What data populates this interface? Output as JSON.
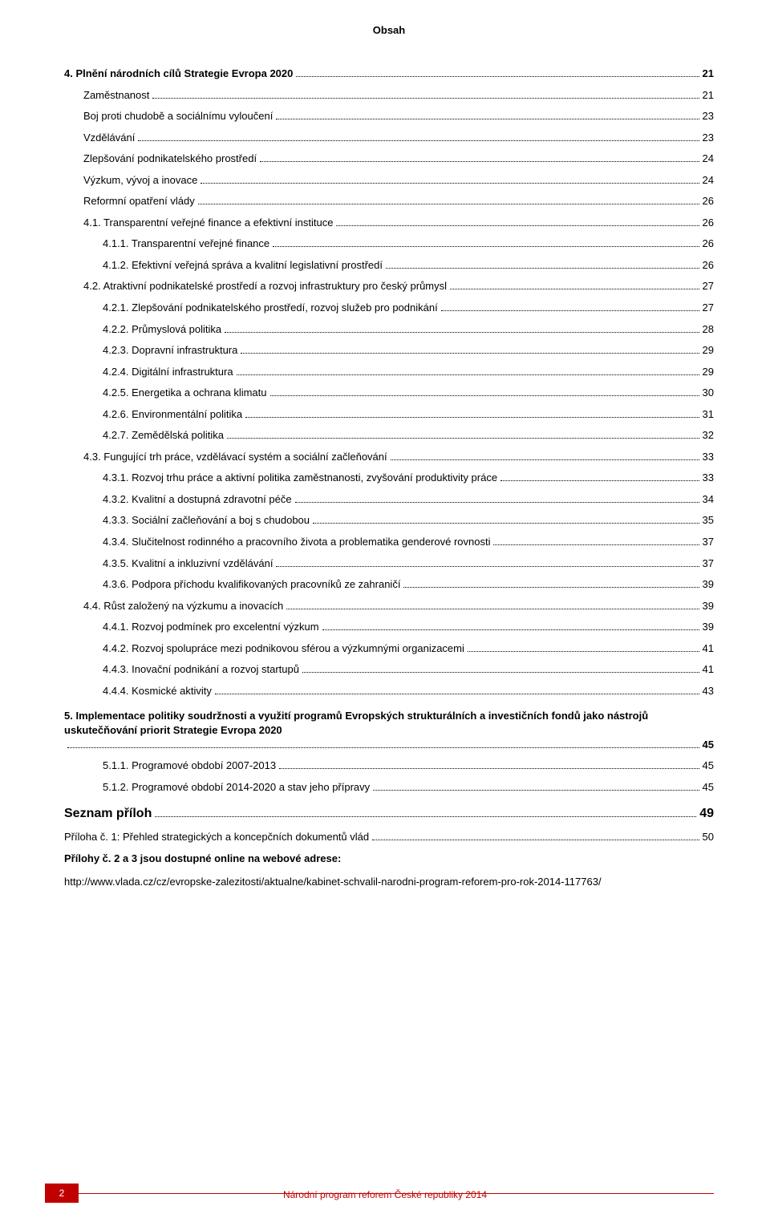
{
  "header": {
    "title": "Obsah"
  },
  "footer": {
    "page_number": "2",
    "caption": "Národní program reforem České republiky 2014",
    "accent_color": "#c00000"
  },
  "toc": [
    {
      "label": "4.  Plnění národních cílů Strategie Evropa 2020",
      "page": "21",
      "level": 0,
      "bold": true,
      "gap": false
    },
    {
      "label": "Zaměstnanost",
      "page": "21",
      "level": 1,
      "bold": false,
      "gap": false
    },
    {
      "label": "Boj proti chudobě a sociálnímu vyloučení",
      "page": "23",
      "level": 1,
      "bold": false,
      "gap": false
    },
    {
      "label": "Vzdělávání",
      "page": "23",
      "level": 1,
      "bold": false,
      "gap": false
    },
    {
      "label": "Zlepšování podnikatelského prostředí",
      "page": "24",
      "level": 1,
      "bold": false,
      "gap": false
    },
    {
      "label": "Výzkum, vývoj a inovace",
      "page": "24",
      "level": 1,
      "bold": false,
      "gap": false
    },
    {
      "label": "Reformní opatření vlády",
      "page": "26",
      "level": 1,
      "bold": false,
      "gap": false
    },
    {
      "label": "4.1.  Transparentní veřejné finance a efektivní instituce",
      "page": "26",
      "level": 2,
      "bold": false,
      "gap": false
    },
    {
      "label": "4.1.1.  Transparentní veřejné finance",
      "page": "26",
      "level": 3,
      "bold": false,
      "gap": false
    },
    {
      "label": "4.1.2.  Efektivní veřejná správa a kvalitní legislativní prostředí",
      "page": "26",
      "level": 3,
      "bold": false,
      "gap": false
    },
    {
      "label": "4.2.  Atraktivní podnikatelské prostředí a rozvoj infrastruktury pro český průmysl",
      "page": "27",
      "level": 2,
      "bold": false,
      "gap": false
    },
    {
      "label": "4.2.1.  Zlepšování podnikatelského prostředí, rozvoj služeb pro podnikání",
      "page": "27",
      "level": 3,
      "bold": false,
      "gap": false
    },
    {
      "label": "4.2.2.  Průmyslová politika",
      "page": "28",
      "level": 3,
      "bold": false,
      "gap": false
    },
    {
      "label": "4.2.3.  Dopravní infrastruktura",
      "page": "29",
      "level": 3,
      "bold": false,
      "gap": false
    },
    {
      "label": "4.2.4.  Digitální infrastruktura",
      "page": "29",
      "level": 3,
      "bold": false,
      "gap": false
    },
    {
      "label": "4.2.5.  Energetika a ochrana klimatu",
      "page": "30",
      "level": 3,
      "bold": false,
      "gap": false
    },
    {
      "label": "4.2.6.  Environmentální politika",
      "page": "31",
      "level": 3,
      "bold": false,
      "gap": false
    },
    {
      "label": "4.2.7.  Zemědělská politika",
      "page": "32",
      "level": 3,
      "bold": false,
      "gap": false
    },
    {
      "label": "4.3.  Fungující trh práce, vzdělávací systém a sociální začleňování",
      "page": "33",
      "level": 2,
      "bold": false,
      "gap": false
    },
    {
      "label": "4.3.1.  Rozvoj trhu práce a aktivní politika zaměstnanosti, zvyšování produktivity práce",
      "page": "33",
      "level": 3,
      "bold": false,
      "gap": false
    },
    {
      "label": "4.3.2.  Kvalitní a dostupná zdravotní péče",
      "page": "34",
      "level": 3,
      "bold": false,
      "gap": false
    },
    {
      "label": "4.3.3.  Sociální začleňování a boj s chudobou",
      "page": "35",
      "level": 3,
      "bold": false,
      "gap": false
    },
    {
      "label": "4.3.4.  Slučitelnost rodinného a pracovního života a problematika genderové rovnosti",
      "page": "37",
      "level": 3,
      "bold": false,
      "gap": false
    },
    {
      "label": "4.3.5.  Kvalitní a inkluzivní vzdělávání",
      "page": "37",
      "level": 3,
      "bold": false,
      "gap": false
    },
    {
      "label": "4.3.6.  Podpora příchodu kvalifikovaných pracovníků ze zahraničí",
      "page": "39",
      "level": 3,
      "bold": false,
      "gap": false
    },
    {
      "label": "4.4.  Růst založený na výzkumu a inovacích",
      "page": "39",
      "level": 2,
      "bold": false,
      "gap": false
    },
    {
      "label": "4.4.1.  Rozvoj podmínek pro excelentní výzkum",
      "page": "39",
      "level": 3,
      "bold": false,
      "gap": false
    },
    {
      "label": "4.4.2.  Rozvoj spolupráce mezi podnikovou sférou a výzkumnými organizacemi",
      "page": "41",
      "level": 3,
      "bold": false,
      "gap": false
    },
    {
      "label": "4.4.3.  Inovační podnikání a rozvoj startupů",
      "page": "41",
      "level": 3,
      "bold": false,
      "gap": false
    },
    {
      "label": "4.4.4.  Kosmické aktivity",
      "page": "43",
      "level": 3,
      "bold": false,
      "gap": false
    },
    {
      "label": "5.  Implementace politiky soudržnosti a využití programů Evropských strukturálních a investičních fondů jako nástrojů uskutečňování priorit Strategie Evropa 2020",
      "page": "45",
      "level": 0,
      "bold": true,
      "gap": true
    },
    {
      "label": "5.1.1.  Programové období 2007-2013",
      "page": "45",
      "level": 3,
      "bold": false,
      "gap": false
    },
    {
      "label": "5.1.2.  Programové období 2014-2020 a stav jeho přípravy",
      "page": "45",
      "level": 3,
      "bold": false,
      "gap": false
    },
    {
      "label": "Seznam příloh",
      "page": "49",
      "level": 0,
      "bold": true,
      "gap": true,
      "big": true
    },
    {
      "label": "Příloha č. 1: Přehled strategických a koncepčních dokumentů vlád",
      "page": "50",
      "level": 0,
      "bold": false,
      "gap": false
    }
  ],
  "attachments_note": {
    "line1_bold": "Přílohy č. 2 a 3 jsou dostupné online na webové adrese:",
    "line2": "http://www.vlada.cz/cz/evropske-zalezitosti/aktualne/kabinet-schvalil-narodni-program-reforem-pro-rok-2014-117763/"
  }
}
